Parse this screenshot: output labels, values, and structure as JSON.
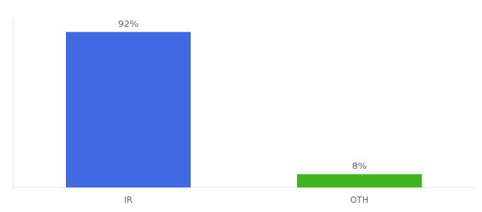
{
  "chart_data": {
    "type": "bar",
    "categories": [
      "IR",
      "OTH"
    ],
    "values": [
      92,
      8
    ],
    "value_labels": [
      "92%",
      "8%"
    ],
    "colors": [
      "#4169e1",
      "#3cb521"
    ],
    "ylim": [
      0,
      100
    ],
    "tick_labels": "x",
    "grid": false,
    "data_labels": true
  }
}
